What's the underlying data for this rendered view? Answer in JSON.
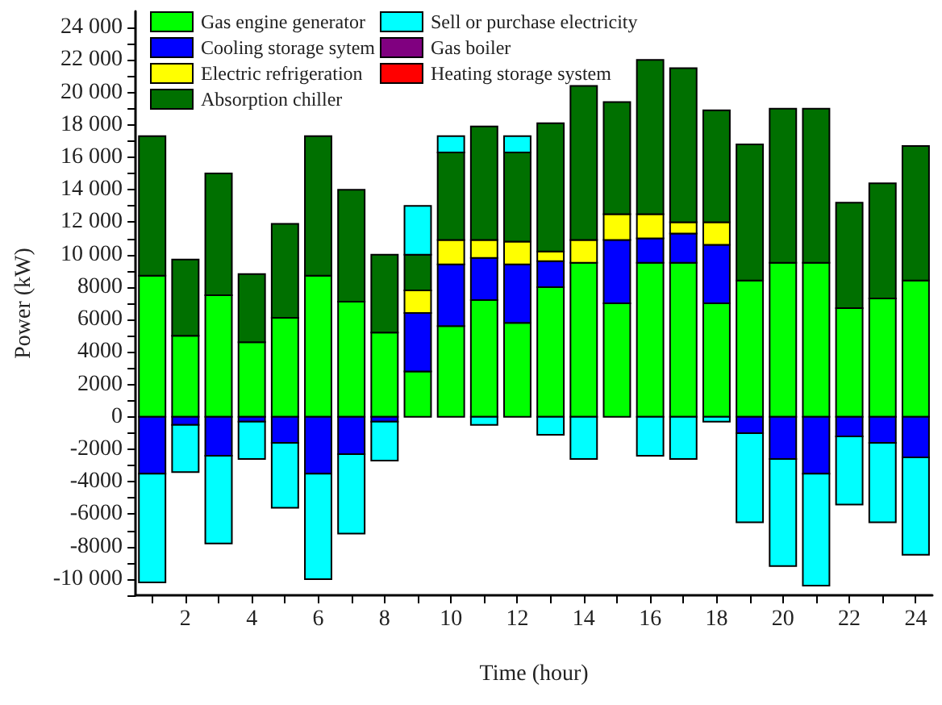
{
  "chart_data": {
    "type": "bar",
    "stacked": true,
    "xlabel": "Time (hour)",
    "ylabel": "Power (kW)",
    "x": [
      1,
      2,
      3,
      4,
      5,
      6,
      7,
      8,
      9,
      10,
      11,
      12,
      13,
      14,
      15,
      16,
      17,
      18,
      19,
      20,
      21,
      22,
      23,
      24
    ],
    "xlim": [
      0.5,
      24.5
    ],
    "xticks": [
      {
        "value": 1,
        "label": null
      },
      2,
      {
        "value": 3,
        "label": null
      },
      4,
      {
        "value": 5,
        "label": null
      },
      6,
      {
        "value": 7,
        "label": null
      },
      8,
      {
        "value": 9,
        "label": null
      },
      10,
      {
        "value": 11,
        "label": null
      },
      12,
      {
        "value": 13,
        "label": null
      },
      14,
      {
        "value": 15,
        "label": null
      },
      16,
      {
        "value": 17,
        "label": null
      },
      18,
      {
        "value": 19,
        "label": null
      },
      20,
      {
        "value": 21,
        "label": null
      },
      22,
      {
        "value": 23,
        "label": null
      },
      24
    ],
    "ylim": [
      -11000,
      25000
    ],
    "yticks": [
      {
        "value": -11000,
        "label": null
      },
      {
        "value": -10000,
        "label": "-10 000"
      },
      {
        "value": -9000,
        "label": null
      },
      -8000,
      {
        "value": -7000,
        "label": null
      },
      -6000,
      {
        "value": -5000,
        "label": null
      },
      -4000,
      {
        "value": -3000,
        "label": null
      },
      -2000,
      {
        "value": -1000,
        "label": null
      },
      0,
      {
        "value": 1000,
        "label": null
      },
      2000,
      {
        "value": 3000,
        "label": null
      },
      4000,
      {
        "value": 5000,
        "label": null
      },
      6000,
      {
        "value": 7000,
        "label": null
      },
      8000,
      {
        "value": 9000,
        "label": null
      },
      {
        "value": 10000,
        "label": "10 000"
      },
      {
        "value": 11000,
        "label": null
      },
      {
        "value": 12000,
        "label": "12 000"
      },
      {
        "value": 13000,
        "label": null
      },
      {
        "value": 14000,
        "label": "14 000"
      },
      {
        "value": 15000,
        "label": null
      },
      {
        "value": 16000,
        "label": "16 000"
      },
      {
        "value": 17000,
        "label": null
      },
      {
        "value": 18000,
        "label": "18 000"
      },
      {
        "value": 19000,
        "label": null
      },
      {
        "value": 20000,
        "label": "20 000"
      },
      {
        "value": 21000,
        "label": null
      },
      {
        "value": 22000,
        "label": "22 000"
      },
      {
        "value": 23000,
        "label": null
      },
      {
        "value": 24000,
        "label": "24 000"
      }
    ],
    "grid": false,
    "legend": "top left",
    "series": [
      {
        "name": "Gas engine generator",
        "color": "#00ff00",
        "values": [
          8700,
          5000,
          7500,
          4600,
          6100,
          8700,
          7100,
          5200,
          2800,
          5600,
          7200,
          5800,
          8000,
          9500,
          7000,
          9500,
          9500,
          7000,
          8400,
          9500,
          9500,
          6700,
          7300,
          8400
        ]
      },
      {
        "name": "Cooling storage sytem",
        "color": "#0000ff",
        "values": [
          -3500,
          -500,
          -2400,
          -300,
          -1600,
          -3500,
          -2300,
          -300,
          3600,
          3800,
          2600,
          3600,
          1600,
          null,
          3900,
          1500,
          1800,
          3600,
          -1000,
          -2600,
          -3500,
          -1200,
          -1600,
          -2500
        ]
      },
      {
        "name": "Electric refrigeration",
        "color": "#ffff00",
        "values": [
          null,
          null,
          null,
          null,
          null,
          null,
          null,
          null,
          1400,
          1500,
          1100,
          1400,
          600,
          1400,
          1600,
          1500,
          700,
          1400,
          null,
          null,
          null,
          null,
          null,
          null
        ]
      },
      {
        "name": "Absorption chiller",
        "color": "#007000",
        "values": [
          8600,
          4700,
          7500,
          4200,
          5800,
          8600,
          6900,
          4800,
          2200,
          5400,
          7000,
          5500,
          7900,
          9500,
          6900,
          9500,
          9500,
          6900,
          8400,
          9500,
          9500,
          6500,
          7100,
          8300
        ]
      },
      {
        "name": "Sell or purchase electricity",
        "color": "#00ffff",
        "values": [
          -6700,
          -2900,
          -5400,
          -2300,
          -4000,
          -6500,
          -4900,
          -2400,
          3000,
          1000,
          -500,
          1000,
          -1100,
          -2600,
          null,
          -2400,
          -2600,
          -300,
          -5500,
          -6600,
          -6900,
          -4200,
          -4900,
          -6000
        ]
      },
      {
        "name": "Gas boiler",
        "color": "#800080",
        "values": [
          null,
          null,
          null,
          null,
          null,
          null,
          null,
          null,
          null,
          null,
          null,
          null,
          null,
          null,
          null,
          null,
          null,
          null,
          null,
          null,
          null,
          null,
          null,
          null
        ]
      },
      {
        "name": "Heating storage system",
        "color": "#ff0000",
        "values": [
          null,
          null,
          null,
          null,
          null,
          null,
          null,
          null,
          null,
          null,
          null,
          null,
          null,
          null,
          null,
          null,
          null,
          null,
          null,
          null,
          null,
          null,
          null,
          null
        ]
      }
    ]
  }
}
